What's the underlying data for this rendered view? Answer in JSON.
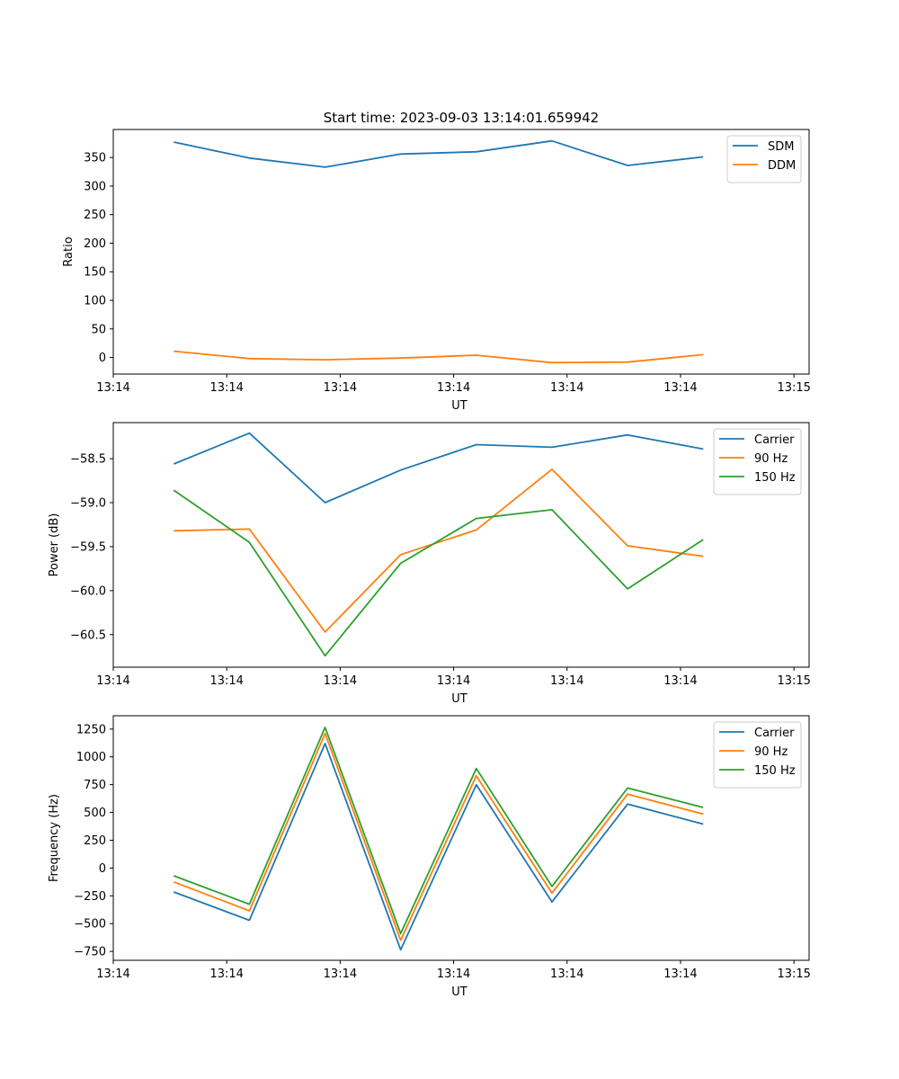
{
  "figure": {
    "title": "Start time: 2023-09-03 13:14:01.659942"
  },
  "colors": {
    "blue": "#1f77b4",
    "orange": "#ff7f0e",
    "green": "#2ca02c"
  },
  "chart_data": [
    {
      "type": "line",
      "title": "Start time: 2023-09-03 13:14:01.659942",
      "xlabel": "UT",
      "ylabel": "Ratio",
      "x": [
        1,
        2,
        3,
        4,
        5,
        6,
        7,
        8
      ],
      "xlim": [
        0.2,
        9.4
      ],
      "xticks": [
        0.2,
        1.7,
        3.2,
        4.7,
        6.2,
        7.7,
        9.2
      ],
      "xticklabels": [
        "13:14",
        "13:14",
        "13:14",
        "13:14",
        "13:14",
        "13:14",
        "13:15"
      ],
      "ylim": [
        -29,
        399
      ],
      "yticks": [
        0,
        50,
        100,
        150,
        200,
        250,
        300,
        350
      ],
      "yticklabels": [
        "0",
        "50",
        "100",
        "150",
        "200",
        "250",
        "300",
        "350"
      ],
      "legend": "top-right",
      "series": [
        {
          "name": "SDM",
          "color": "#1f77b4",
          "values": [
            377,
            349,
            333,
            356,
            360,
            379,
            336,
            351
          ]
        },
        {
          "name": "DDM",
          "color": "#ff7f0e",
          "values": [
            11,
            -2,
            -4,
            -1,
            4,
            -9,
            -8,
            5
          ]
        }
      ]
    },
    {
      "type": "line",
      "xlabel": "UT",
      "ylabel": "Power (dB)",
      "x": [
        1,
        2,
        3,
        4,
        5,
        6,
        7,
        8
      ],
      "xlim": [
        0.2,
        9.4
      ],
      "xticks": [
        0.2,
        1.7,
        3.2,
        4.7,
        6.2,
        7.7,
        9.2
      ],
      "xticklabels": [
        "13:14",
        "13:14",
        "13:14",
        "13:14",
        "13:14",
        "13:14",
        "13:15"
      ],
      "ylim": [
        -60.87,
        -58.09
      ],
      "yticks": [
        -60.5,
        -60.0,
        -59.5,
        -59.0,
        -58.5
      ],
      "yticklabels": [
        "−60.5",
        "−60.0",
        "−59.5",
        "−59.0",
        "−58.5"
      ],
      "legend": "top-right",
      "series": [
        {
          "name": "Carrier",
          "color": "#1f77b4",
          "values": [
            -58.56,
            -58.21,
            -59.0,
            -58.63,
            -58.34,
            -58.37,
            -58.23,
            -58.39
          ]
        },
        {
          "name": "90 Hz",
          "color": "#ff7f0e",
          "values": [
            -59.32,
            -59.3,
            -60.47,
            -59.59,
            -59.31,
            -58.62,
            -59.49,
            -59.61
          ]
        },
        {
          "name": "150 Hz",
          "color": "#2ca02c",
          "values": [
            -58.86,
            -59.45,
            -60.74,
            -59.69,
            -59.18,
            -59.08,
            -59.98,
            -59.42
          ]
        }
      ]
    },
    {
      "type": "line",
      "xlabel": "UT",
      "ylabel": "Frequency (Hz)",
      "x": [
        1,
        2,
        3,
        4,
        5,
        6,
        7,
        8
      ],
      "xlim": [
        0.2,
        9.4
      ],
      "xticks": [
        0.2,
        1.7,
        3.2,
        4.7,
        6.2,
        7.7,
        9.2
      ],
      "xticklabels": [
        "13:14",
        "13:14",
        "13:14",
        "13:14",
        "13:14",
        "13:14",
        "13:15"
      ],
      "ylim": [
        -830,
        1370
      ],
      "yticks": [
        -750,
        -500,
        -250,
        0,
        250,
        500,
        750,
        1000,
        1250
      ],
      "yticklabels": [
        "−750",
        "−500",
        "−250",
        "0",
        "250",
        "500",
        "750",
        "1000",
        "1250"
      ],
      "legend": "top-right",
      "series": [
        {
          "name": "Carrier",
          "color": "#1f77b4",
          "values": [
            -215,
            -470,
            1120,
            -735,
            750,
            -305,
            575,
            395
          ]
        },
        {
          "name": "90 Hz",
          "color": "#ff7f0e",
          "values": [
            -125,
            -385,
            1210,
            -650,
            830,
            -225,
            665,
            485
          ]
        },
        {
          "name": "150 Hz",
          "color": "#2ca02c",
          "values": [
            -70,
            -325,
            1265,
            -590,
            895,
            -165,
            720,
            545
          ]
        }
      ]
    }
  ]
}
